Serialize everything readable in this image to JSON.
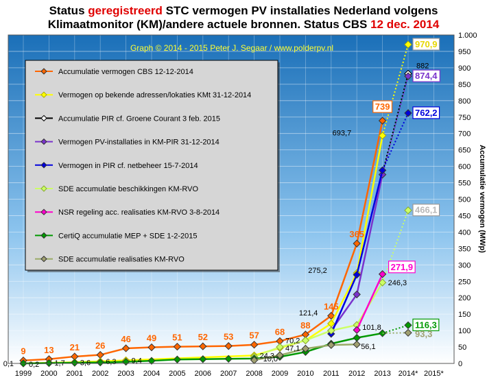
{
  "title": {
    "line1_a": "Status ",
    "line1_red": "geregistreerd",
    "line1_b": " STC vermogen PV installaties Nederland volgens",
    "line2_a": "Klimaatmonitor (KM)/andere actuele bronnen. Status CBS ",
    "line2_red": "12 dec. 2014"
  },
  "chart_data": {
    "type": "line",
    "watermark": "Graph © 2014 - 2015 Peter J. Segaar / www.polderpv.nl",
    "ylabel": "Accumulatie vermogen (MWp)",
    "xlabel": "",
    "categories": [
      "1999",
      "2000",
      "2001",
      "2002",
      "2003",
      "2004",
      "2005",
      "2006",
      "2007",
      "2008",
      "2009",
      "2010",
      "2011",
      "2012",
      "2013",
      "2014*",
      "2015*"
    ],
    "ylim": [
      0,
      1000
    ],
    "yticks": [
      0,
      50,
      100,
      150,
      200,
      250,
      300,
      350,
      400,
      450,
      500,
      550,
      600,
      650,
      700,
      750,
      800,
      850,
      900,
      950,
      1000
    ],
    "ytick_labels": [
      "0",
      "50",
      "100",
      "150",
      "200",
      "250",
      "300",
      "350",
      "400",
      "450",
      "500",
      "550",
      "600",
      "650",
      "700",
      "750",
      "800",
      "850",
      "900",
      "950",
      "1.000"
    ],
    "grid": true,
    "legend_position": "top-left",
    "series": [
      {
        "name": "Accumulatie vermogen CBS 12-12-2014",
        "color": "#ff6600",
        "marker": "diamond",
        "marker_fill": "#ff6600",
        "points": [
          [
            0,
            9
          ],
          [
            1,
            13
          ],
          [
            2,
            21
          ],
          [
            3,
            26
          ],
          [
            4,
            46
          ],
          [
            5,
            49
          ],
          [
            6,
            51
          ],
          [
            7,
            52
          ],
          [
            8,
            53
          ],
          [
            9,
            57
          ],
          [
            10,
            68
          ],
          [
            11,
            88
          ],
          [
            12,
            145
          ],
          [
            13,
            365
          ],
          [
            14,
            739
          ]
        ]
      },
      {
        "name": "Vermogen op bekende adressen/lokaties KMt 31-12-2014",
        "color": "#ffff00",
        "marker": "diamond",
        "marker_fill": "#ffff00",
        "points": [
          [
            0,
            0.2
          ],
          [
            1,
            1.7
          ],
          [
            2,
            3.6
          ],
          [
            3,
            6.3
          ],
          [
            4,
            9.4
          ],
          [
            9,
            24.3
          ],
          [
            10,
            47.1
          ],
          [
            11,
            70.2
          ],
          [
            12,
            121.4
          ],
          [
            13,
            275.2
          ],
          [
            14,
            693.7
          ]
        ],
        "projection": [
          [
            14,
            693.7
          ],
          [
            15,
            970.9
          ]
        ]
      },
      {
        "name": "Accumulatie PIR cf. Groene Courant 3 feb. 2015",
        "color": "#000000",
        "marker": "diamond-open",
        "marker_fill": "#ffffff",
        "points": [
          [
            15,
            882
          ]
        ],
        "projection": [
          [
            14,
            580
          ],
          [
            15,
            882
          ]
        ]
      },
      {
        "name": "Vermogen PV-installaties in KM-PIR 31-12-2014",
        "color": "#7a33cc",
        "marker": "diamond",
        "marker_fill": "#7a33cc",
        "points": [
          [
            12,
            100
          ],
          [
            13,
            210
          ],
          [
            14,
            575
          ]
        ],
        "projection": [
          [
            14,
            575
          ],
          [
            15,
            874.4
          ]
        ]
      },
      {
        "name": "Vermogen in PIR cf. netbeheer 15-7-2014",
        "color": "#0000dd",
        "marker": "diamond",
        "marker_fill": "#0000dd",
        "points": [
          [
            12,
            90
          ],
          [
            13,
            270
          ],
          [
            14,
            588
          ]
        ],
        "projection": [
          [
            14,
            588
          ],
          [
            15,
            762.2
          ]
        ]
      },
      {
        "name": "SDE accumulatie beschikkingen KM-RVO",
        "color": "#ccff66",
        "marker": "diamond",
        "marker_fill": "#ccff66",
        "points": [
          [
            9,
            20
          ],
          [
            10,
            50
          ],
          [
            11,
            70
          ],
          [
            12,
            100
          ],
          [
            13,
            117
          ],
          [
            14,
            246.3
          ]
        ],
        "projection": [
          [
            14,
            246.3
          ],
          [
            15,
            466.1
          ]
        ]
      },
      {
        "name": "NSR regeling acc. realisaties KM-RVO 3-8-2014",
        "color": "#ff00cc",
        "marker": "diamond",
        "marker_fill": "#ff00cc",
        "points": [
          [
            13,
            101.8
          ],
          [
            14,
            271.9
          ]
        ]
      },
      {
        "name": "CertiQ accumulatie MEP + SDE 1-2-2015",
        "color": "#009900",
        "marker": "diamond",
        "marker_fill": "#009900",
        "points": [
          [
            0,
            0.1
          ],
          [
            1,
            1
          ],
          [
            2,
            2
          ],
          [
            3,
            3
          ],
          [
            4,
            5
          ],
          [
            5,
            8
          ],
          [
            6,
            12
          ],
          [
            7,
            13
          ],
          [
            8,
            14
          ],
          [
            9,
            15
          ],
          [
            10,
            20
          ],
          [
            11,
            35
          ],
          [
            12,
            60
          ],
          [
            13,
            78
          ],
          [
            14,
            92
          ]
        ],
        "projection": [
          [
            14,
            92
          ],
          [
            15,
            116.3
          ]
        ]
      },
      {
        "name": "SDE accumulatie realisaties KM-RVO",
        "color": "#99aa66",
        "marker": "diamond",
        "marker_fill": "#a0a070",
        "points": [
          [
            9,
            10
          ],
          [
            10,
            25
          ],
          [
            11,
            45
          ],
          [
            12,
            56.1
          ],
          [
            13,
            58
          ]
        ],
        "projection": [
          [
            14,
            92
          ],
          [
            15,
            93.3
          ]
        ]
      }
    ],
    "annotations": [
      {
        "text": "9",
        "x": 0,
        "y": 9,
        "color": "#ff6600"
      },
      {
        "text": "13",
        "x": 1,
        "y": 13,
        "color": "#ff6600"
      },
      {
        "text": "21",
        "x": 2,
        "y": 21,
        "color": "#ff6600"
      },
      {
        "text": "26",
        "x": 3,
        "y": 26,
        "color": "#ff6600"
      },
      {
        "text": "46",
        "x": 4,
        "y": 46,
        "color": "#ff6600"
      },
      {
        "text": "49",
        "x": 5,
        "y": 49,
        "color": "#ff6600"
      },
      {
        "text": "51",
        "x": 6,
        "y": 51,
        "color": "#ff6600"
      },
      {
        "text": "52",
        "x": 7,
        "y": 52,
        "color": "#ff6600"
      },
      {
        "text": "53",
        "x": 8,
        "y": 53,
        "color": "#ff6600"
      },
      {
        "text": "57",
        "x": 9,
        "y": 57,
        "color": "#ff6600"
      },
      {
        "text": "68",
        "x": 10,
        "y": 68,
        "color": "#ff6600"
      },
      {
        "text": "88",
        "x": 11,
        "y": 88,
        "color": "#ff6600"
      },
      {
        "text": "145",
        "x": 12,
        "y": 145,
        "color": "#ff6600"
      },
      {
        "text": "365",
        "x": 13,
        "y": 365,
        "color": "#ff6600"
      },
      {
        "text": "739",
        "x": 14,
        "y": 739,
        "color": "#ff6600",
        "boxed": true
      },
      {
        "text": "0,1",
        "x": 0,
        "y": 0.1,
        "color": "#000000"
      },
      {
        "text": "0,2",
        "x": 0,
        "y": 0.2,
        "color": "#000000"
      },
      {
        "text": "1,7",
        "x": 1,
        "y": 1.7,
        "color": "#000000"
      },
      {
        "text": "3,6",
        "x": 2,
        "y": 3.6,
        "color": "#000000"
      },
      {
        "text": "6,3",
        "x": 3,
        "y": 6.3,
        "color": "#000000"
      },
      {
        "text": "9,4",
        "x": 4,
        "y": 9.4,
        "color": "#000000"
      },
      {
        "text": "24,3",
        "x": 9,
        "y": 24.3,
        "color": "#000000"
      },
      {
        "text": "10,0",
        "x": 9,
        "y": 10.0,
        "color": "#000000"
      },
      {
        "text": "47,1",
        "x": 10,
        "y": 47.1,
        "color": "#000000"
      },
      {
        "text": "70,2",
        "x": 10,
        "y": 70.2,
        "color": "#000000"
      },
      {
        "text": "121,4",
        "x": 11,
        "y": 121.4,
        "color": "#000000"
      },
      {
        "text": "275,2",
        "x": 12,
        "y": 275.2,
        "color": "#000000"
      },
      {
        "text": "101,8",
        "x": 13,
        "y": 101.8,
        "color": "#000000"
      },
      {
        "text": "56,1",
        "x": 13,
        "y": 56.1,
        "color": "#000000"
      },
      {
        "text": "693,7",
        "x": 13,
        "y": 693.7,
        "color": "#000000"
      },
      {
        "text": "246,3",
        "x": 14,
        "y": 246.3,
        "color": "#000000"
      },
      {
        "text": "882",
        "x": 15,
        "y": 882,
        "color": "#000000"
      },
      {
        "text": "970,9",
        "x": 15,
        "y": 970.9,
        "color": "#ffff00",
        "boxed": true
      },
      {
        "text": "874,4",
        "x": 15,
        "y": 874.4,
        "color": "#7a33cc",
        "boxed": true
      },
      {
        "text": "762,2",
        "x": 15,
        "y": 762.2,
        "color": "#0000dd",
        "boxed": true
      },
      {
        "text": "466,1",
        "x": 15,
        "y": 466.1,
        "color": "#ccff66",
        "boxed": true
      },
      {
        "text": "271,9",
        "x": 14,
        "y": 271.9,
        "color": "#ff00cc",
        "boxed": true
      },
      {
        "text": "116,3",
        "x": 15,
        "y": 116.3,
        "color": "#009900",
        "boxed": true
      },
      {
        "text": "93,3",
        "x": 15,
        "y": 93.3,
        "color": "#a0a070"
      }
    ]
  }
}
